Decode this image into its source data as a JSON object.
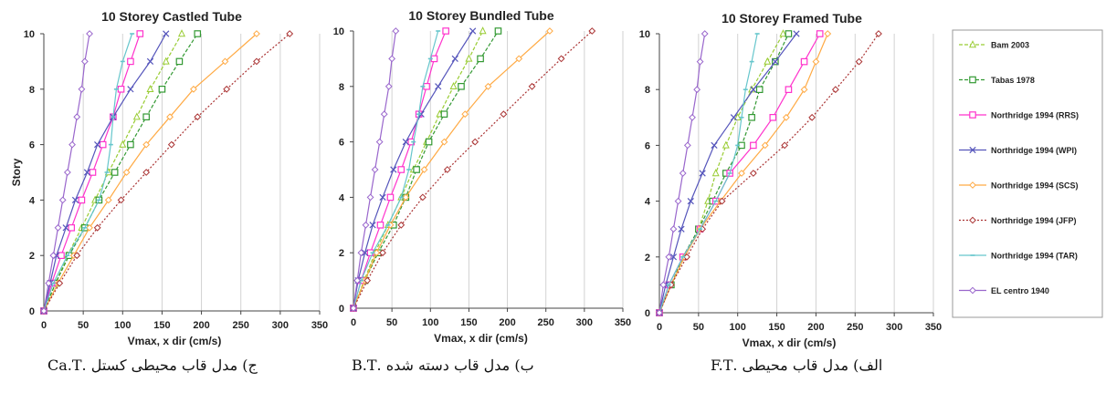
{
  "figure": {
    "legend": [
      {
        "name": "Bam 2003",
        "color": "#99cc33",
        "dash": "dashed",
        "marker": "triangle"
      },
      {
        "name": "Tabas 1978",
        "color": "#339933",
        "dash": "dashed",
        "marker": "square"
      },
      {
        "name": "Northridge 1994  (RRS)",
        "color": "#ff33cc",
        "dash": "solid",
        "marker": "square"
      },
      {
        "name": "Northridge 1994  (WPI)",
        "color": "#5555bb",
        "dash": "solid",
        "marker": "x"
      },
      {
        "name": "Northridge 1994  (SCS)",
        "color": "#ffaa44",
        "dash": "solid",
        "marker": "diamond"
      },
      {
        "name": "Northridge 1994  (JFP)",
        "color": "#aa3333",
        "dash": "dotted",
        "marker": "diamond"
      },
      {
        "name": "Northridge 1994  (TAR)",
        "color": "#66c6cc",
        "dash": "solid",
        "marker": "dash"
      },
      {
        "name": "EL centro 1940",
        "color": "#9966cc",
        "dash": "solid",
        "marker": "diamond"
      }
    ],
    "captions": [
      "ج) مدل قاب محیطی کستل .Ca.T",
      "ب) مدل قاب دسته شده .B.T",
      "الف) مدل قاب محیطی .F.T"
    ]
  },
  "chart_data": [
    {
      "type": "line",
      "title": "10 Storey Castled Tube",
      "xlabel": "Vmax, x dir (cm/s)",
      "ylabel": "Story",
      "xlim": [
        0,
        350
      ],
      "ylim": [
        0,
        10
      ],
      "xticks": [
        0,
        50,
        100,
        150,
        200,
        250,
        300,
        350
      ],
      "yticks": [
        0,
        2,
        4,
        6,
        8,
        10
      ],
      "grid": "vertical",
      "y": [
        0,
        1,
        2,
        3,
        4,
        5,
        6,
        7,
        8,
        9,
        10
      ],
      "series": [
        {
          "name": "Bam 2003",
          "x": [
            0,
            15,
            30,
            48,
            65,
            82,
            100,
            118,
            135,
            155,
            175
          ]
        },
        {
          "name": "Tabas 1978",
          "x": [
            0,
            15,
            32,
            52,
            70,
            90,
            110,
            130,
            150,
            172,
            195
          ]
        },
        {
          "name": "Northridge 1994  (RRS)",
          "x": [
            0,
            10,
            22,
            35,
            48,
            62,
            75,
            88,
            98,
            110,
            122
          ]
        },
        {
          "name": "Northridge 1994  (WPI)",
          "x": [
            0,
            8,
            16,
            28,
            40,
            55,
            68,
            88,
            110,
            135,
            155
          ]
        },
        {
          "name": "Northridge 1994  (SCS)",
          "x": [
            0,
            18,
            38,
            58,
            82,
            105,
            130,
            160,
            190,
            230,
            270
          ]
        },
        {
          "name": "Northridge 1994  (JFP)",
          "x": [
            0,
            20,
            42,
            68,
            98,
            130,
            162,
            195,
            232,
            270,
            312
          ]
        },
        {
          "name": "Northridge 1994  (TAR)",
          "x": [
            0,
            12,
            30,
            52,
            70,
            80,
            85,
            88,
            92,
            100,
            112
          ]
        },
        {
          "name": "EL centro 1940",
          "x": [
            0,
            6,
            12,
            18,
            24,
            30,
            36,
            42,
            48,
            52,
            58
          ]
        }
      ]
    },
    {
      "type": "line",
      "title": "10 Storey Bundled Tube",
      "xlabel": "Vmax, x dir (cm/s)",
      "ylabel": "",
      "xlim": [
        0,
        350
      ],
      "ylim": [
        0,
        10
      ],
      "xticks": [
        0,
        50,
        100,
        150,
        200,
        250,
        300,
        350
      ],
      "yticks": [
        0,
        2,
        4,
        6,
        8,
        10
      ],
      "grid": "vertical",
      "y": [
        0,
        1,
        2,
        3,
        4,
        5,
        6,
        7,
        8,
        9,
        10
      ],
      "series": [
        {
          "name": "Bam 2003",
          "x": [
            0,
            14,
            28,
            45,
            62,
            78,
            95,
            112,
            130,
            150,
            168
          ]
        },
        {
          "name": "Tabas 1978",
          "x": [
            0,
            15,
            32,
            52,
            68,
            82,
            98,
            118,
            140,
            165,
            188
          ]
        },
        {
          "name": "Northridge 1994  (RRS)",
          "x": [
            0,
            10,
            22,
            35,
            48,
            62,
            75,
            85,
            95,
            105,
            120
          ]
        },
        {
          "name": "Northridge 1994  (WPI)",
          "x": [
            0,
            6,
            15,
            25,
            38,
            52,
            68,
            88,
            110,
            132,
            155
          ]
        },
        {
          "name": "Northridge 1994  (SCS)",
          "x": [
            0,
            15,
            30,
            48,
            68,
            92,
            118,
            145,
            175,
            215,
            255
          ]
        },
        {
          "name": "Northridge 1994  (JFP)",
          "x": [
            0,
            18,
            38,
            62,
            90,
            122,
            158,
            195,
            232,
            270,
            310
          ]
        },
        {
          "name": "Northridge 1994  (TAR)",
          "x": [
            0,
            10,
            25,
            45,
            62,
            72,
            78,
            85,
            90,
            100,
            110
          ]
        },
        {
          "name": "EL centro 1940",
          "x": [
            0,
            5,
            10,
            16,
            22,
            28,
            34,
            40,
            46,
            50,
            55
          ]
        }
      ]
    },
    {
      "type": "line",
      "title": "10 Storey Framed Tube",
      "xlabel": "Vmax, x dir (cm/s)",
      "ylabel": "",
      "xlim": [
        0,
        350
      ],
      "ylim": [
        0,
        10
      ],
      "xticks": [
        0,
        50,
        100,
        150,
        200,
        250,
        300,
        350
      ],
      "yticks": [
        0,
        2,
        4,
        6,
        8,
        10
      ],
      "grid": "vertical",
      "y": [
        0,
        1,
        2,
        3,
        4,
        5,
        6,
        7,
        8,
        9,
        10
      ],
      "series": [
        {
          "name": "Bam 2003",
          "x": [
            0,
            15,
            32,
            50,
            62,
            72,
            85,
            100,
            118,
            138,
            158
          ]
        },
        {
          "name": "Tabas 1978",
          "x": [
            0,
            15,
            30,
            50,
            68,
            85,
            105,
            118,
            128,
            148,
            165
          ]
        },
        {
          "name": "Northridge 1994  (RRS)",
          "x": [
            0,
            12,
            30,
            52,
            72,
            90,
            120,
            145,
            165,
            185,
            205
          ]
        },
        {
          "name": "Northridge 1994  (WPI)",
          "x": [
            0,
            8,
            18,
            28,
            40,
            55,
            70,
            95,
            120,
            148,
            175
          ]
        },
        {
          "name": "Northridge 1994  (SCS)",
          "x": [
            0,
            15,
            32,
            52,
            78,
            105,
            135,
            162,
            185,
            200,
            215
          ]
        },
        {
          "name": "Northridge 1994  (JFP)",
          "x": [
            0,
            15,
            35,
            55,
            80,
            120,
            160,
            195,
            225,
            255,
            280
          ]
        },
        {
          "name": "Northridge 1994  (TAR)",
          "x": [
            0,
            12,
            30,
            52,
            72,
            90,
            100,
            105,
            110,
            118,
            125
          ]
        },
        {
          "name": "EL centro 1940",
          "x": [
            0,
            5,
            12,
            18,
            24,
            30,
            36,
            42,
            48,
            52,
            58
          ]
        }
      ]
    }
  ]
}
